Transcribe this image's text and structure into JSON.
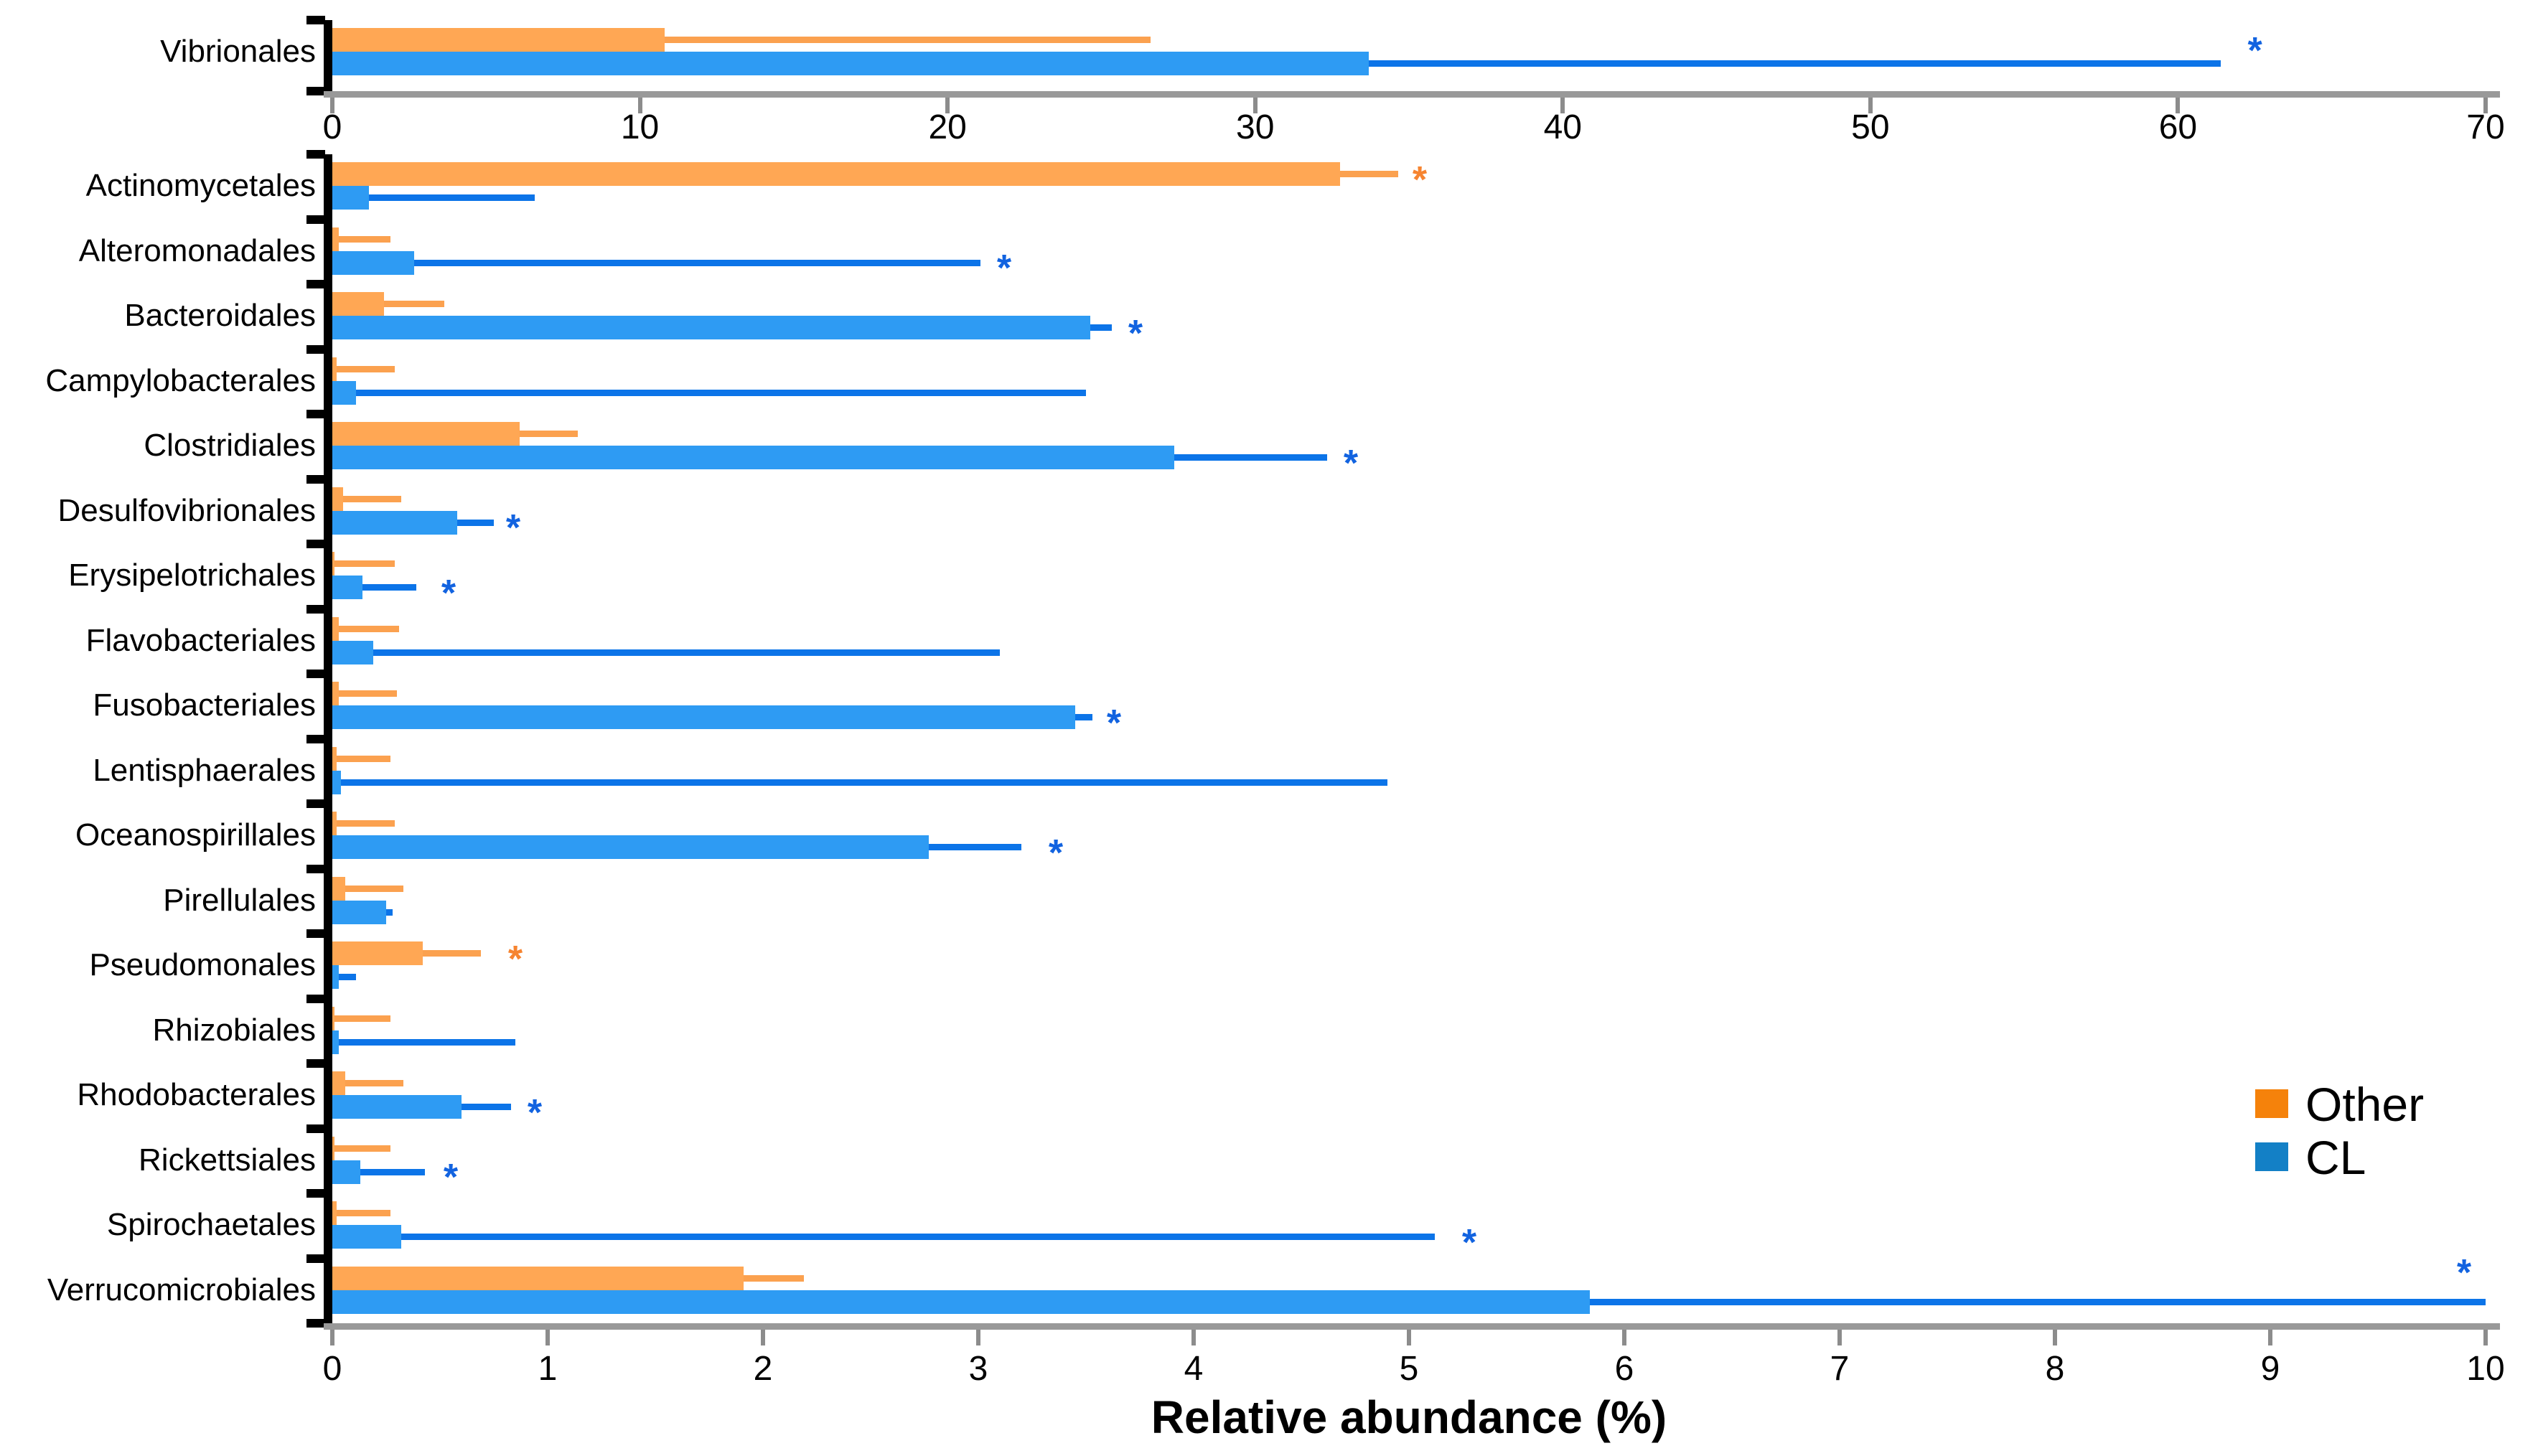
{
  "chart_data": {
    "type": "bar",
    "orientation": "horizontal",
    "title": "",
    "xlabel": "Relative abundance (%)",
    "ylabel": "",
    "grid": false,
    "legend_position": "right-middle",
    "legend": [
      {
        "name": "Other",
        "color": "#F5820B"
      },
      {
        "name": "CL",
        "color": "#1380C6"
      }
    ],
    "series_note": "values are mean relative abundance (%); e = upper end of error bar; star = x-position of significance asterisk",
    "colors": {
      "other_bar": "#FFA754",
      "other_error": "#FBA14F",
      "other_star": "#F68430",
      "cl_bar": "#2E9BF3",
      "cl_error": "#0C74E8",
      "cl_star": "#1263E0",
      "axis_line": "#999999",
      "axis_text": "#000000"
    },
    "panels": [
      {
        "xlim": [
          0,
          70
        ],
        "ticks": [
          0,
          10,
          20,
          30,
          40,
          50,
          60,
          70
        ],
        "rows": [
          {
            "label": "Vibrionales",
            "other": {
              "v": 10.8,
              "e": 26.6
            },
            "cl": {
              "v": 33.7,
              "e": 61.4,
              "star": 62.5,
              "star_dy": -26
            }
          }
        ]
      },
      {
        "xlim": [
          0,
          10
        ],
        "ticks": [
          0,
          1,
          2,
          3,
          4,
          5,
          6,
          7,
          8,
          9,
          10
        ],
        "rows": [
          {
            "label": "Actinomycetales",
            "other": {
              "v": 4.68,
              "e": 4.95,
              "star": 5.05
            },
            "cl": {
              "v": 0.17,
              "e": 0.94
            }
          },
          {
            "label": "Alteromonadales",
            "other": {
              "v": 0.03,
              "e": 0.27
            },
            "cl": {
              "v": 0.38,
              "e": 3.01,
              "star": 3.12
            }
          },
          {
            "label": "Bacteroidales",
            "other": {
              "v": 0.24,
              "e": 0.52
            },
            "cl": {
              "v": 3.52,
              "e": 3.62,
              "star": 3.73
            }
          },
          {
            "label": "Campylobacterales",
            "other": {
              "v": 0.02,
              "e": 0.29
            },
            "cl": {
              "v": 0.11,
              "e": 3.5
            }
          },
          {
            "label": "Clostridiales",
            "other": {
              "v": 0.87,
              "e": 1.14
            },
            "cl": {
              "v": 3.91,
              "e": 4.62,
              "star": 4.73
            }
          },
          {
            "label": "Desulfovibrionales",
            "other": {
              "v": 0.05,
              "e": 0.32
            },
            "cl": {
              "v": 0.58,
              "e": 0.75,
              "star": 0.84
            }
          },
          {
            "label": "Erysipelotrichales",
            "other": {
              "v": 0.01,
              "e": 0.29
            },
            "cl": {
              "v": 0.14,
              "e": 0.39,
              "star": 0.54
            }
          },
          {
            "label": "Flavobacteriales",
            "other": {
              "v": 0.03,
              "e": 0.31
            },
            "cl": {
              "v": 0.19,
              "e": 3.1
            }
          },
          {
            "label": "Fusobacteriales",
            "other": {
              "v": 0.03,
              "e": 0.3
            },
            "cl": {
              "v": 3.45,
              "e": 3.53,
              "star": 3.63
            }
          },
          {
            "label": "Lentisphaerales",
            "other": {
              "v": 0.02,
              "e": 0.27
            },
            "cl": {
              "v": 0.04,
              "e": 4.9
            }
          },
          {
            "label": "Oceanospirillales",
            "other": {
              "v": 0.02,
              "e": 0.29
            },
            "cl": {
              "v": 2.77,
              "e": 3.2,
              "star": 3.36
            }
          },
          {
            "label": "Pirellulales",
            "other": {
              "v": 0.06,
              "e": 0.33
            },
            "cl": {
              "v": 0.25,
              "e": 0.28
            }
          },
          {
            "label": "Pseudomonales",
            "other": {
              "v": 0.42,
              "e": 0.69,
              "star": 0.85
            },
            "cl": {
              "v": 0.03,
              "e": 0.11
            }
          },
          {
            "label": "Rhizobiales",
            "other": {
              "v": 0.01,
              "e": 0.27
            },
            "cl": {
              "v": 0.03,
              "e": 0.85
            }
          },
          {
            "label": "Rhodobacterales",
            "other": {
              "v": 0.06,
              "e": 0.33
            },
            "cl": {
              "v": 0.6,
              "e": 0.83,
              "star": 0.94
            }
          },
          {
            "label": "Rickettsiales",
            "other": {
              "v": 0.01,
              "e": 0.27
            },
            "cl": {
              "v": 0.13,
              "e": 0.43,
              "star": 0.55
            }
          },
          {
            "label": "Spirochaetales",
            "other": {
              "v": 0.02,
              "e": 0.27
            },
            "cl": {
              "v": 0.32,
              "e": 5.12,
              "star": 5.28
            }
          },
          {
            "label": "Verrucomicrobiales",
            "other": {
              "v": 1.91,
              "e": 2.19
            },
            "cl": {
              "v": 5.84,
              "e": 10.0,
              "star": 9.9,
              "star_dy": -48
            }
          }
        ]
      }
    ]
  }
}
